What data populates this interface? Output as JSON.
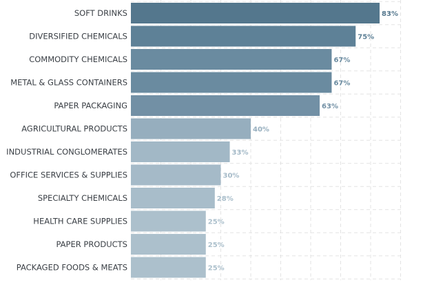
{
  "chart_data": {
    "type": "bar",
    "orientation": "horizontal",
    "categories": [
      "SOFT DRINKS",
      "DIVERSIFIED CHEMICALS",
      "COMMODITY CHEMICALS",
      "METAL & GLASS CONTAINERS",
      "PAPER PACKAGING",
      "AGRICULTURAL PRODUCTS",
      "INDUSTRIAL CONGLOMERATES",
      "OFFICE SERVICES & SUPPLIES",
      "SPECIALTY CHEMICALS",
      "HEALTH CARE SUPPLIES",
      "PAPER PRODUCTS",
      "PACKAGED FOODS & MEATS"
    ],
    "values": [
      83,
      75,
      67,
      67,
      63,
      40,
      33,
      30,
      28,
      25,
      25,
      25
    ],
    "value_labels": [
      "83%",
      "75%",
      "67%",
      "67%",
      "63%",
      "40%",
      "33%",
      "30%",
      "28%",
      "25%",
      "25%",
      "25%"
    ],
    "bar_colors": [
      "#54778d",
      "#5e8197",
      "#6a8ba0",
      "#6a8ba0",
      "#7290a5",
      "#96aebe",
      "#a2b8c6",
      "#a5bac8",
      "#a8bdca",
      "#acc0cc",
      "#acc0cc",
      "#acc0cc"
    ],
    "label_colors": [
      "#54778d",
      "#5e8197",
      "#6a8ba0",
      "#6a8ba0",
      "#7290a5",
      "#96aebe",
      "#a2b8c6",
      "#a5bac8",
      "#a8bdca",
      "#acc0cc",
      "#acc0cc",
      "#acc0cc"
    ],
    "xlim": [
      0,
      100
    ],
    "grid": true,
    "title": "",
    "xlabel": "",
    "ylabel": ""
  }
}
